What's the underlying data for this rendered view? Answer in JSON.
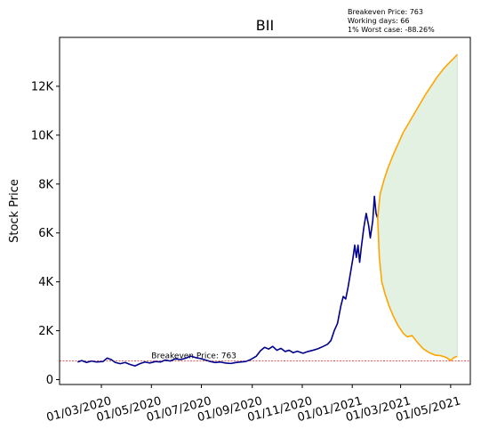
{
  "chart_data": {
    "type": "line",
    "title": "BII",
    "xlabel": "",
    "ylabel": "Stock Price",
    "x_range": [
      "2020-01-10",
      "2021-05-25"
    ],
    "y_range": [
      -200,
      14000
    ],
    "y_ticks": [
      0,
      2000,
      4000,
      6000,
      8000,
      10000,
      12000
    ],
    "y_tick_labels": [
      "0",
      "2K",
      "4K",
      "6K",
      "8K",
      "10K",
      "12K"
    ],
    "x_ticks": [
      "2020-03-01",
      "2020-05-01",
      "2020-07-01",
      "2020-09-01",
      "2020-11-01",
      "2021-01-01",
      "2021-03-01",
      "2021-05-01"
    ],
    "x_tick_labels": [
      "01/03/2020",
      "01/05/2020",
      "01/07/2020",
      "01/09/2020",
      "01/11/2020",
      "01/01/2021",
      "01/03/2021",
      "01/05/2021"
    ],
    "grid": false,
    "colors": {
      "price": "#00008b",
      "bounds": "#ffa500",
      "fill": "#d8ecd8",
      "breakeven": "#cc0000"
    },
    "breakeven": {
      "value": 763,
      "label": "Breakeven Price: 763"
    },
    "annotation_lines": [
      "Breakeven Price: 763",
      "Working days: 66",
      "1% Worst case: -88.26%"
    ],
    "series": [
      {
        "role": "price",
        "points": [
          [
            "2020-02-01",
            720
          ],
          [
            "2020-02-06",
            780
          ],
          [
            "2020-02-12",
            700
          ],
          [
            "2020-02-18",
            760
          ],
          [
            "2020-02-24",
            720
          ],
          [
            "2020-03-03",
            740
          ],
          [
            "2020-03-08",
            880
          ],
          [
            "2020-03-13",
            820
          ],
          [
            "2020-03-18",
            700
          ],
          [
            "2020-03-24",
            650
          ],
          [
            "2020-03-30",
            700
          ],
          [
            "2020-04-05",
            620
          ],
          [
            "2020-04-11",
            560
          ],
          [
            "2020-04-17",
            650
          ],
          [
            "2020-04-23",
            720
          ],
          [
            "2020-04-29",
            680
          ],
          [
            "2020-05-06",
            740
          ],
          [
            "2020-05-12",
            720
          ],
          [
            "2020-05-18",
            800
          ],
          [
            "2020-05-24",
            760
          ],
          [
            "2020-05-30",
            850
          ],
          [
            "2020-06-06",
            820
          ],
          [
            "2020-06-12",
            880
          ],
          [
            "2020-06-18",
            960
          ],
          [
            "2020-06-24",
            900
          ],
          [
            "2020-06-30",
            860
          ],
          [
            "2020-07-06",
            800
          ],
          [
            "2020-07-12",
            740
          ],
          [
            "2020-07-18",
            700
          ],
          [
            "2020-07-24",
            720
          ],
          [
            "2020-07-30",
            680
          ],
          [
            "2020-08-06",
            660
          ],
          [
            "2020-08-12",
            700
          ],
          [
            "2020-08-18",
            720
          ],
          [
            "2020-08-24",
            740
          ],
          [
            "2020-08-30",
            820
          ],
          [
            "2020-09-06",
            960
          ],
          [
            "2020-09-11",
            1180
          ],
          [
            "2020-09-16",
            1320
          ],
          [
            "2020-09-21",
            1250
          ],
          [
            "2020-09-26",
            1360
          ],
          [
            "2020-10-01",
            1200
          ],
          [
            "2020-10-06",
            1280
          ],
          [
            "2020-10-11",
            1150
          ],
          [
            "2020-10-16",
            1200
          ],
          [
            "2020-10-21",
            1100
          ],
          [
            "2020-10-26",
            1160
          ],
          [
            "2020-11-02",
            1080
          ],
          [
            "2020-11-08",
            1150
          ],
          [
            "2020-11-14",
            1200
          ],
          [
            "2020-11-20",
            1260
          ],
          [
            "2020-11-26",
            1350
          ],
          [
            "2020-12-02",
            1450
          ],
          [
            "2020-12-06",
            1600
          ],
          [
            "2020-12-10",
            2000
          ],
          [
            "2020-12-14",
            2300
          ],
          [
            "2020-12-18",
            3000
          ],
          [
            "2020-12-21",
            3400
          ],
          [
            "2020-12-24",
            3300
          ],
          [
            "2020-12-27",
            3800
          ],
          [
            "2020-12-30",
            4400
          ],
          [
            "2021-01-02",
            5000
          ],
          [
            "2021-01-04",
            5500
          ],
          [
            "2021-01-06",
            5000
          ],
          [
            "2021-01-08",
            5500
          ],
          [
            "2021-01-10",
            4800
          ],
          [
            "2021-01-12",
            5400
          ],
          [
            "2021-01-15",
            6200
          ],
          [
            "2021-01-18",
            6800
          ],
          [
            "2021-01-21",
            6300
          ],
          [
            "2021-01-23",
            5800
          ],
          [
            "2021-01-26",
            6500
          ],
          [
            "2021-01-28",
            7500
          ],
          [
            "2021-01-30",
            6800
          ],
          [
            "2021-02-01",
            6600
          ]
        ]
      },
      {
        "role": "upper-bound",
        "points": [
          [
            "2021-02-01",
            6600
          ],
          [
            "2021-02-04",
            7600
          ],
          [
            "2021-02-09",
            8200
          ],
          [
            "2021-02-14",
            8700
          ],
          [
            "2021-02-20",
            9200
          ],
          [
            "2021-02-26",
            9650
          ],
          [
            "2021-03-04",
            10100
          ],
          [
            "2021-03-11",
            10500
          ],
          [
            "2021-03-18",
            10900
          ],
          [
            "2021-03-25",
            11300
          ],
          [
            "2021-04-01",
            11700
          ],
          [
            "2021-04-08",
            12050
          ],
          [
            "2021-04-15",
            12400
          ],
          [
            "2021-04-22",
            12700
          ],
          [
            "2021-04-29",
            12950
          ],
          [
            "2021-05-05",
            13150
          ],
          [
            "2021-05-09",
            13300
          ]
        ]
      },
      {
        "role": "lower-bound",
        "points": [
          [
            "2021-02-01",
            6600
          ],
          [
            "2021-02-03",
            5000
          ],
          [
            "2021-02-06",
            4000
          ],
          [
            "2021-02-10",
            3500
          ],
          [
            "2021-02-15",
            3000
          ],
          [
            "2021-02-20",
            2600
          ],
          [
            "2021-02-26",
            2200
          ],
          [
            "2021-03-04",
            1900
          ],
          [
            "2021-03-09",
            1750
          ],
          [
            "2021-03-15",
            1800
          ],
          [
            "2021-03-22",
            1500
          ],
          [
            "2021-03-29",
            1250
          ],
          [
            "2021-04-05",
            1100
          ],
          [
            "2021-04-12",
            1000
          ],
          [
            "2021-04-19",
            980
          ],
          [
            "2021-04-26",
            900
          ],
          [
            "2021-05-01",
            780
          ],
          [
            "2021-05-05",
            900
          ],
          [
            "2021-05-09",
            950
          ]
        ]
      }
    ]
  }
}
